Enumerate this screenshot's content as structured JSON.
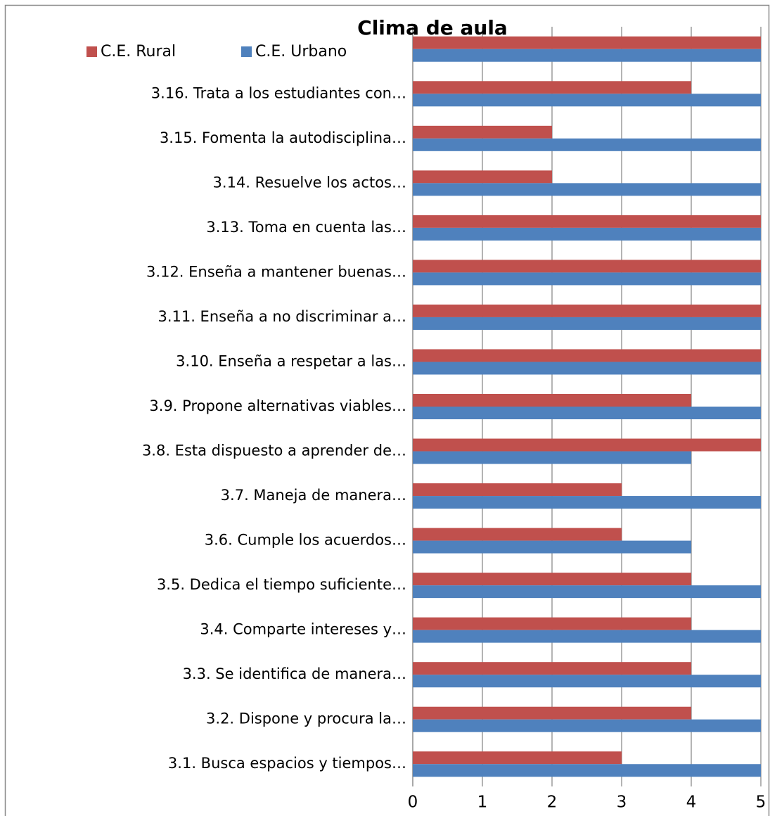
{
  "chart_data": {
    "type": "hbar",
    "title": "Clima de aula",
    "categories": [
      "3.1.  Busca espacios y tiempos…",
      "3.2.  Dispone y procura la…",
      "3.3.  Se identifica de manera…",
      "3.4.  Comparte intereses y…",
      "3.5.  Dedica el tiempo suficiente…",
      "3.6.  Cumple los acuerdos…",
      "3.7.  Maneja de manera…",
      "3.8.  Esta dispuesto a aprender de…",
      "3.9.  Propone alternativas viables…",
      "3.10.   Enseña a respetar a las…",
      "3.11.   Enseña a no discriminar a…",
      "3.12.   Enseña a mantener buenas…",
      "3.13.   Toma en cuenta las…",
      "3.14.   Resuelve los actos…",
      "3.15.   Fomenta la autodisciplina…",
      "3.16.   Trata a los estudiantes con…",
      null
    ],
    "series": [
      {
        "name": "C.E. Rural",
        "color": "#c0504d",
        "values": [
          3,
          4,
          4,
          4,
          4,
          3,
          3,
          5,
          4,
          5,
          5,
          5,
          5,
          2,
          2,
          4,
          5
        ]
      },
      {
        "name": "C.E. Urbano",
        "color": "#4f81bd",
        "values": [
          5,
          5,
          5,
          5,
          5,
          4,
          5,
          4,
          5,
          5,
          5,
          5,
          5,
          5,
          5,
          5,
          5
        ]
      }
    ],
    "xlim": [
      0,
      5
    ],
    "xticks": [
      0,
      1,
      2,
      3,
      4,
      5
    ],
    "grid": true
  }
}
